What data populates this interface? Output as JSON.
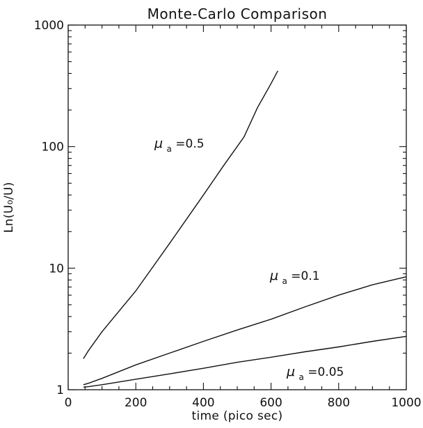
{
  "chart_data": {
    "type": "line",
    "title": "Monte-Carlo Comparison",
    "xlabel": "time  (pico sec)",
    "ylabel": "Ln(U₀/U)",
    "xlim": [
      0,
      1000
    ],
    "ylim": [
      1,
      1000
    ],
    "yscale": "log",
    "grid": false,
    "x_ticks": [
      0,
      200,
      400,
      600,
      800,
      1000
    ],
    "y_ticks": [
      1,
      10,
      100,
      1000
    ],
    "series": [
      {
        "name": "μ_a=0.5",
        "label_parts": {
          "mu": "μ",
          "sub": "a",
          "eq": "=0.5"
        },
        "x": [
          45,
          60,
          100,
          200,
          300,
          400,
          460,
          520,
          560,
          600,
          620
        ],
        "y": [
          1.8,
          2.1,
          3.0,
          6.5,
          16,
          40,
          70,
          120,
          210,
          330,
          420
        ]
      },
      {
        "name": "μ_a=0.1",
        "label_parts": {
          "mu": "μ",
          "sub": "a",
          "eq": "=0.1"
        },
        "x": [
          45,
          60,
          100,
          200,
          300,
          400,
          500,
          600,
          700,
          800,
          900,
          1000
        ],
        "y": [
          1.1,
          1.13,
          1.24,
          1.6,
          2.0,
          2.5,
          3.1,
          3.8,
          4.8,
          6.0,
          7.3,
          8.5
        ]
      },
      {
        "name": "μ_a=0.05",
        "label_parts": {
          "mu": "μ",
          "sub": "a",
          "eq": "=0.05"
        },
        "x": [
          45,
          60,
          100,
          200,
          300,
          400,
          500,
          600,
          700,
          800,
          900,
          1000
        ],
        "y": [
          1.05,
          1.06,
          1.1,
          1.22,
          1.35,
          1.5,
          1.68,
          1.85,
          2.05,
          2.25,
          2.5,
          2.75
        ]
      }
    ]
  }
}
